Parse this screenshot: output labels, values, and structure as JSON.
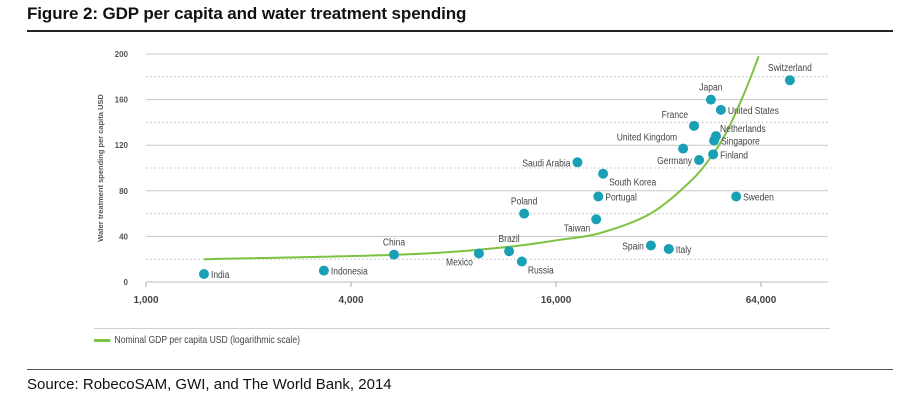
{
  "figure": {
    "title": "Figure 2: GDP per capita and water treatment spending",
    "source": "Source: RobecoSAM, GWI, and The World Bank, 2014"
  },
  "colors": {
    "point": "#1aa0b4",
    "curve": "#7dc242",
    "grid": "#cccccc",
    "label": "#444444"
  },
  "chart_data": {
    "type": "scatter",
    "title": "Figure 2: GDP per capita and water treatment spending",
    "xlabel": "Nominal GDP per capita USD (logarithmic scale)",
    "ylabel": "Water treatment spending per capita USD",
    "xscale": "log",
    "xlim": [
      1000,
      100000
    ],
    "ylim": [
      0,
      200
    ],
    "xticks": [
      1000,
      4000,
      16000,
      64000
    ],
    "xtick_labels": [
      "1,000",
      "4,000",
      "16,000",
      "64,000"
    ],
    "yticks": [
      0,
      40,
      80,
      120,
      160,
      200
    ],
    "ytick_labels": [
      "0",
      "40",
      "80",
      "120",
      "160",
      "200"
    ],
    "minor_yticks": [
      20,
      60,
      100,
      140,
      180
    ],
    "grid": true,
    "legend": {
      "position": "bottom-left",
      "entries": [
        "Nominal GDP per capita USD (logarithmic scale)"
      ]
    },
    "points": [
      {
        "label": "India",
        "x": 1480,
        "y": 7,
        "label_pos": "right"
      },
      {
        "label": "Indonesia",
        "x": 3330,
        "y": 10,
        "label_pos": "right"
      },
      {
        "label": "China",
        "x": 5350,
        "y": 24,
        "label_pos": "top"
      },
      {
        "label": "Mexico",
        "x": 9500,
        "y": 25,
        "label_pos": "bottom-left"
      },
      {
        "label": "Brazil",
        "x": 11650,
        "y": 27,
        "label_pos": "top"
      },
      {
        "label": "Russia",
        "x": 12700,
        "y": 18,
        "label_pos": "bottom-right"
      },
      {
        "label": "Poland",
        "x": 12900,
        "y": 60,
        "label_pos": "top"
      },
      {
        "label": "Saudi Arabia",
        "x": 18500,
        "y": 105,
        "label_pos": "left"
      },
      {
        "label": "South Korea",
        "x": 22000,
        "y": 95,
        "label_pos": "bottom-right"
      },
      {
        "label": "Portugal",
        "x": 21300,
        "y": 75,
        "label_pos": "right"
      },
      {
        "label": "Taiwan",
        "x": 21000,
        "y": 55,
        "label_pos": "bottom-left"
      },
      {
        "label": "Spain",
        "x": 30400,
        "y": 32,
        "label_pos": "left"
      },
      {
        "label": "Italy",
        "x": 34300,
        "y": 29,
        "label_pos": "right"
      },
      {
        "label": "United Kingdom",
        "x": 37800,
        "y": 117,
        "label_pos": "top-left"
      },
      {
        "label": "France",
        "x": 40700,
        "y": 137,
        "label_pos": "top-left"
      },
      {
        "label": "Germany",
        "x": 42100,
        "y": 107,
        "label_pos": "left"
      },
      {
        "label": "Japan",
        "x": 45600,
        "y": 160,
        "label_pos": "top"
      },
      {
        "label": "Finland",
        "x": 46300,
        "y": 112,
        "label_pos": "right"
      },
      {
        "label": "Singapore",
        "x": 46600,
        "y": 124,
        "label_pos": "right"
      },
      {
        "label": "Netherlands",
        "x": 47200,
        "y": 128,
        "label_pos": "top-right"
      },
      {
        "label": "United States",
        "x": 48800,
        "y": 151,
        "label_pos": "right"
      },
      {
        "label": "Sweden",
        "x": 54100,
        "y": 75,
        "label_pos": "right"
      },
      {
        "label": "Switzerland",
        "x": 77800,
        "y": 177,
        "label_pos": "top"
      }
    ],
    "trend_curve": {
      "name": "Nominal GDP per capita USD (logarithmic scale)",
      "x": [
        1480,
        5570,
        10900,
        16400,
        21600,
        30300,
        39600,
        46000,
        51000,
        57600,
        63000
      ],
      "y": [
        20,
        24,
        30,
        37,
        43,
        60,
        88,
        111,
        133,
        168,
        198
      ]
    }
  }
}
